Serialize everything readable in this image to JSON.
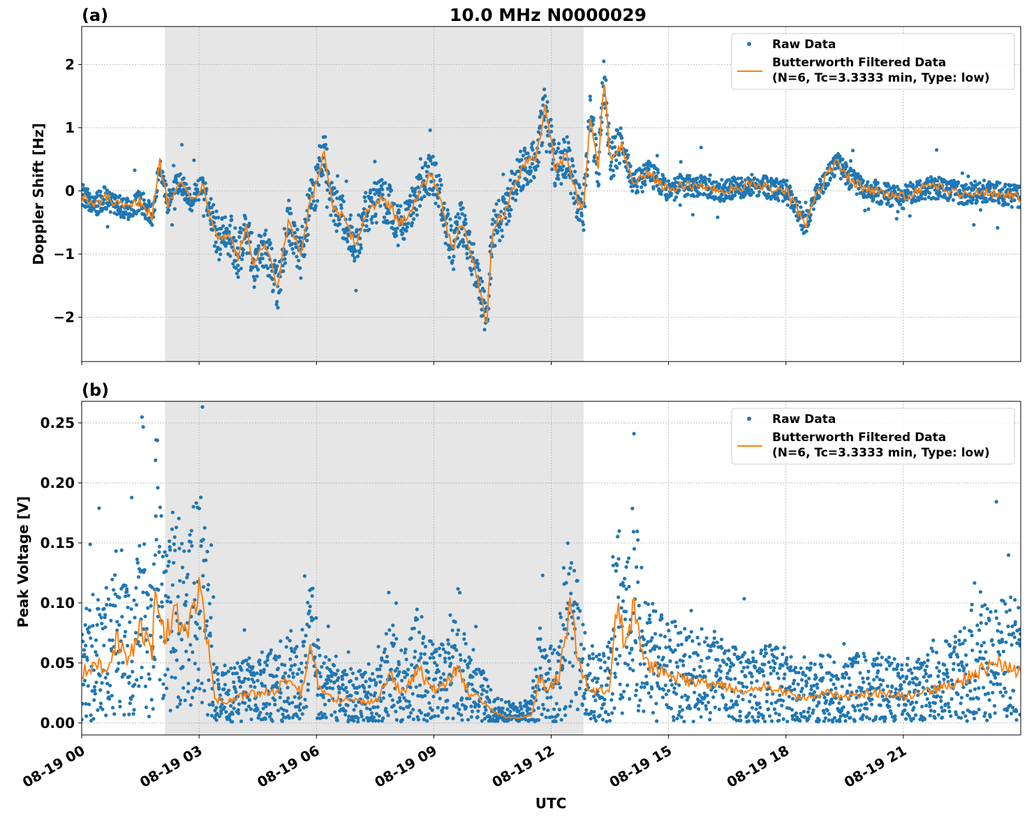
{
  "chart_data": [
    {
      "type": "scatter",
      "panel_label": "(a)",
      "title": "10.0 MHz N0000029",
      "xlabel": "",
      "ylabel": "Doppler Shift [Hz]",
      "xlim": [
        0,
        24
      ],
      "ylim": [
        -2.7,
        2.6
      ],
      "yticks": [
        -2,
        -1,
        0,
        1,
        2
      ],
      "ytick_labels": [
        "−2",
        "−1",
        "0",
        "1",
        "2"
      ],
      "xticks": [
        0,
        3,
        6,
        9,
        12,
        15,
        18,
        21
      ],
      "xtick_labels": [],
      "shaded_region": [
        2.13,
        12.83
      ],
      "grid": true,
      "legend_position": "upper right",
      "series": [
        {
          "name": "Raw Data",
          "kind": "scatter",
          "color": "#1f77b4"
        },
        {
          "name": "Butterworth Filtered Data",
          "name_line2": "(N=6, Tc=3.3333 min, Type: low)",
          "kind": "line",
          "color": "#ff7f0e"
        }
      ],
      "filtered_curve": [
        [
          0.0,
          -0.05
        ],
        [
          0.3,
          -0.25
        ],
        [
          0.6,
          -0.1
        ],
        [
          0.9,
          -0.22
        ],
        [
          1.2,
          -0.28
        ],
        [
          1.5,
          -0.15
        ],
        [
          1.8,
          -0.4
        ],
        [
          2.0,
          0.45
        ],
        [
          2.2,
          -0.2
        ],
        [
          2.5,
          0.2
        ],
        [
          2.8,
          -0.15
        ],
        [
          3.1,
          0.1
        ],
        [
          3.3,
          -0.4
        ],
        [
          3.5,
          -0.75
        ],
        [
          3.8,
          -0.7
        ],
        [
          4.0,
          -1.05
        ],
        [
          4.2,
          -0.6
        ],
        [
          4.4,
          -1.15
        ],
        [
          4.7,
          -0.85
        ],
        [
          5.0,
          -1.55
        ],
        [
          5.3,
          -0.45
        ],
        [
          5.6,
          -1.05
        ],
        [
          5.8,
          -0.3
        ],
        [
          6.0,
          0.1
        ],
        [
          6.2,
          0.65
        ],
        [
          6.4,
          -0.2
        ],
        [
          6.7,
          -0.45
        ],
        [
          7.0,
          -0.85
        ],
        [
          7.3,
          -0.3
        ],
        [
          7.6,
          -0.15
        ],
        [
          7.9,
          -0.25
        ],
        [
          8.1,
          -0.55
        ],
        [
          8.4,
          -0.3
        ],
        [
          8.7,
          0.05
        ],
        [
          8.9,
          0.3
        ],
        [
          9.1,
          0.05
        ],
        [
          9.3,
          -0.55
        ],
        [
          9.5,
          -0.9
        ],
        [
          9.7,
          -0.45
        ],
        [
          9.9,
          -0.85
        ],
        [
          10.2,
          -1.6
        ],
        [
          10.35,
          -2.15
        ],
        [
          10.5,
          -0.6
        ],
        [
          10.8,
          -0.35
        ],
        [
          11.0,
          0.0
        ],
        [
          11.3,
          0.4
        ],
        [
          11.6,
          0.5
        ],
        [
          11.85,
          1.35
        ],
        [
          12.1,
          0.35
        ],
        [
          12.4,
          0.55
        ],
        [
          12.7,
          -0.2
        ],
        [
          12.83,
          -0.3
        ],
        [
          13.0,
          1.2
        ],
        [
          13.2,
          0.3
        ],
        [
          13.35,
          1.85
        ],
        [
          13.5,
          0.5
        ],
        [
          13.8,
          0.7
        ],
        [
          14.1,
          0.1
        ],
        [
          14.5,
          0.3
        ],
        [
          15.0,
          0.0
        ],
        [
          15.5,
          0.1
        ],
        [
          16.0,
          0.05
        ],
        [
          16.5,
          0.0
        ],
        [
          17.0,
          0.1
        ],
        [
          17.5,
          0.05
        ],
        [
          18.0,
          0.0
        ],
        [
          18.3,
          -0.3
        ],
        [
          18.5,
          -0.55
        ],
        [
          18.7,
          -0.15
        ],
        [
          19.1,
          0.3
        ],
        [
          19.3,
          0.45
        ],
        [
          19.6,
          0.2
        ],
        [
          20.0,
          0.05
        ],
        [
          20.5,
          -0.05
        ],
        [
          21.0,
          -0.1
        ],
        [
          21.5,
          0.05
        ],
        [
          22.0,
          0.05
        ],
        [
          22.5,
          -0.05
        ],
        [
          23.0,
          0.0
        ],
        [
          23.5,
          -0.05
        ],
        [
          24.0,
          -0.1
        ]
      ]
    },
    {
      "type": "scatter",
      "panel_label": "(b)",
      "title": "",
      "xlabel": "UTC",
      "ylabel": "Peak Voltage [V]",
      "xlim": [
        0,
        24
      ],
      "ylim": [
        -0.01,
        0.268
      ],
      "yticks": [
        0.0,
        0.05,
        0.1,
        0.15,
        0.2,
        0.25
      ],
      "ytick_labels": [
        "0.00",
        "0.05",
        "0.10",
        "0.15",
        "0.20",
        "0.25"
      ],
      "xticks": [
        0,
        3,
        6,
        9,
        12,
        15,
        18,
        21
      ],
      "xtick_labels": [
        "08-19 00",
        "08-19 03",
        "08-19 06",
        "08-19 09",
        "08-19 12",
        "08-19 15",
        "08-19 18",
        "08-19 21"
      ],
      "shaded_region": [
        2.13,
        12.83
      ],
      "grid": true,
      "legend_position": "upper right",
      "series": [
        {
          "name": "Raw Data",
          "kind": "scatter",
          "color": "#1f77b4"
        },
        {
          "name": "Butterworth Filtered Data",
          "name_line2": "(N=6, Tc=3.3333 min, Type: low)",
          "kind": "line",
          "color": "#ff7f0e"
        }
      ],
      "filtered_curve": [
        [
          0.0,
          0.04
        ],
        [
          0.3,
          0.05
        ],
        [
          0.6,
          0.045
        ],
        [
          0.9,
          0.07
        ],
        [
          1.2,
          0.05
        ],
        [
          1.5,
          0.08
        ],
        [
          1.8,
          0.06
        ],
        [
          1.9,
          0.125
        ],
        [
          2.1,
          0.07
        ],
        [
          2.4,
          0.09
        ],
        [
          2.7,
          0.08
        ],
        [
          3.0,
          0.11
        ],
        [
          3.2,
          0.07
        ],
        [
          3.4,
          0.02
        ],
        [
          3.7,
          0.018
        ],
        [
          4.0,
          0.022
        ],
        [
          4.5,
          0.025
        ],
        [
          5.0,
          0.028
        ],
        [
          5.3,
          0.04
        ],
        [
          5.6,
          0.025
        ],
        [
          5.85,
          0.06
        ],
        [
          6.1,
          0.025
        ],
        [
          6.5,
          0.02
        ],
        [
          7.0,
          0.018
        ],
        [
          7.5,
          0.017
        ],
        [
          7.9,
          0.04
        ],
        [
          8.2,
          0.025
        ],
        [
          8.6,
          0.045
        ],
        [
          8.9,
          0.03
        ],
        [
          9.2,
          0.028
        ],
        [
          9.6,
          0.045
        ],
        [
          9.9,
          0.025
        ],
        [
          10.2,
          0.02
        ],
        [
          10.5,
          0.01
        ],
        [
          10.8,
          0.005
        ],
        [
          11.2,
          0.004
        ],
        [
          11.5,
          0.006
        ],
        [
          11.7,
          0.04
        ],
        [
          11.9,
          0.025
        ],
        [
          12.2,
          0.04
        ],
        [
          12.5,
          0.095
        ],
        [
          12.7,
          0.05
        ],
        [
          12.83,
          0.035
        ],
        [
          13.2,
          0.025
        ],
        [
          13.5,
          0.03
        ],
        [
          13.65,
          0.1
        ],
        [
          13.9,
          0.065
        ],
        [
          14.1,
          0.095
        ],
        [
          14.4,
          0.05
        ],
        [
          15.0,
          0.04
        ],
        [
          15.5,
          0.035
        ],
        [
          16.0,
          0.032
        ],
        [
          16.5,
          0.03
        ],
        [
          17.0,
          0.025
        ],
        [
          17.5,
          0.03
        ],
        [
          18.0,
          0.025
        ],
        [
          18.5,
          0.02
        ],
        [
          19.0,
          0.025
        ],
        [
          19.5,
          0.022
        ],
        [
          20.0,
          0.025
        ],
        [
          20.5,
          0.025
        ],
        [
          21.0,
          0.022
        ],
        [
          21.5,
          0.025
        ],
        [
          22.0,
          0.03
        ],
        [
          22.5,
          0.035
        ],
        [
          23.0,
          0.045
        ],
        [
          23.5,
          0.05
        ],
        [
          24.0,
          0.04
        ]
      ]
    }
  ]
}
